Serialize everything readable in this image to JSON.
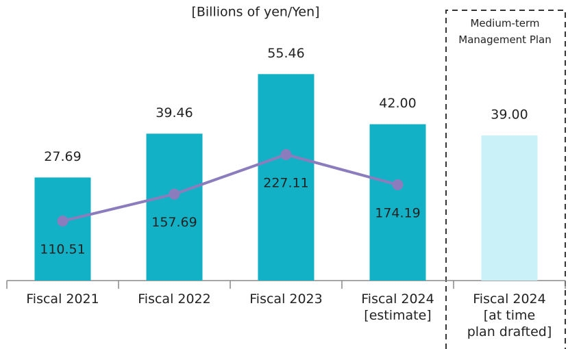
{
  "chart_data": {
    "type": "bar",
    "title": "[Billions of yen/Yen]",
    "annotation": "Medium-term\nManagement Plan",
    "categories": [
      "Fiscal 2021",
      "Fiscal 2022",
      "Fiscal 2023",
      "Fiscal 2024\n[estimate]",
      "Fiscal 2024\n[at time\nplan drafted]"
    ],
    "series": [
      {
        "name": "Bars",
        "type": "bar",
        "color": "#13b1c6",
        "plan_color": "#c9f1f7",
        "values": [
          27.69,
          39.46,
          55.46,
          42,
          39
        ],
        "value_labels": [
          "27.69",
          "39.46",
          "55.46",
          "42.00",
          "39.00"
        ]
      },
      {
        "name": "Line",
        "type": "line",
        "axis": "y2",
        "color": "#8b7dbd",
        "values": [
          110.51,
          157.69,
          227.11,
          174.19,
          null
        ]
      }
    ],
    "ylim": [
      0,
      75
    ],
    "y2lim": [
      6,
      496
    ]
  }
}
